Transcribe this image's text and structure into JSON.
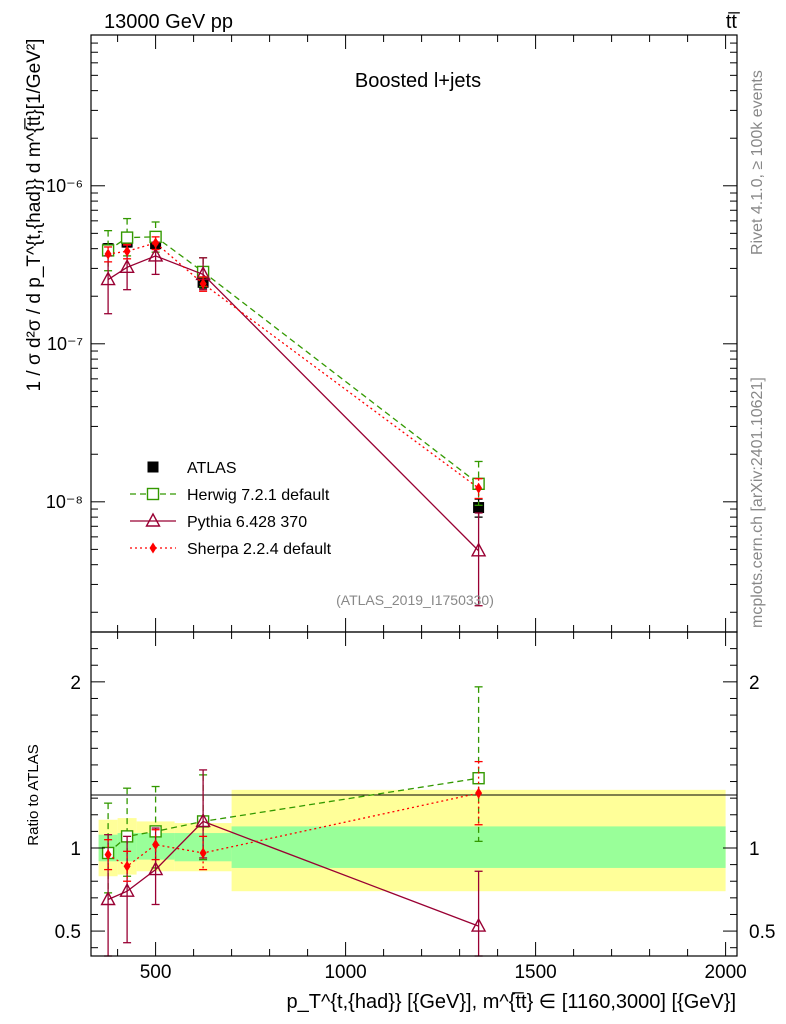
{
  "header": {
    "energy_label": "13000 GeV pp",
    "process_label": "tt̅"
  },
  "side": {
    "rivet_label": "Rivet 4.1.0, ≥ 100k events",
    "source_label": "mcplots.cern.ch [arXiv:2401.10621]"
  },
  "chart_data": [
    {
      "type": "line",
      "panel": "main",
      "title": "Boosted l+jets",
      "watermark": "(ATLAS_2019_I1750330)",
      "ylabel": "1 / σ d²σ / d p_T^{t,{had}} d m^{t̅t}[1/GeV²]",
      "yscale": "log",
      "xlim": [
        330,
        2030
      ],
      "ylim": [
        1.5e-09,
        9e-06
      ],
      "ytick_labels": [
        "10⁻⁶",
        "10⁻⁷",
        "10⁻⁸"
      ],
      "ytick_values": [
        1e-06,
        1e-07,
        1e-08
      ],
      "legend_position": "bottom-left",
      "series": [
        {
          "name": "ATLAS",
          "color": "#000000",
          "marker": "square-filled",
          "line": "none",
          "x": [
            375,
            425,
            500,
            625,
            1350
          ],
          "y": [
            4e-07,
            4.4e-07,
            4.3e-07,
            2.45e-07,
            9.2e-09
          ],
          "y_low": [
            3.7e-07,
            4.1e-07,
            4e-07,
            2.25e-07,
            8e-09
          ],
          "y_high": [
            4.3e-07,
            4.7e-07,
            4.6e-07,
            2.65e-07,
            1.04e-08
          ]
        },
        {
          "name": "Herwig 7.2.1 default",
          "color": "#339900",
          "marker": "square-open",
          "line": "dashed",
          "x": [
            375,
            425,
            500,
            625,
            1350
          ],
          "y": [
            3.9e-07,
            4.7e-07,
            4.75e-07,
            2.85e-07,
            1.3e-08
          ],
          "y_low": [
            2.9e-07,
            3.6e-07,
            3.8e-07,
            2.3e-07,
            9.5e-09
          ],
          "y_high": [
            5.2e-07,
            6.2e-07,
            5.9e-07,
            3.5e-07,
            1.8e-08
          ]
        },
        {
          "name": "Pythia 6.428 370",
          "color": "#990033",
          "marker": "triangle-open",
          "line": "solid",
          "x": [
            375,
            425,
            500,
            625,
            1350
          ],
          "y": [
            2.55e-07,
            3.05e-07,
            3.6e-07,
            2.75e-07,
            4.9e-09
          ],
          "y_low": [
            1.55e-07,
            2.2e-07,
            2.75e-07,
            2.2e-07,
            2.2e-09
          ],
          "y_high": [
            3.6e-07,
            4.2e-07,
            4.4e-07,
            3.5e-07,
            8.5e-09
          ]
        },
        {
          "name": "Sherpa 2.2.4 default",
          "color": "#ff0000",
          "marker": "diamond-filled",
          "line": "dotted",
          "x": [
            375,
            425,
            500,
            625,
            1350
          ],
          "y": [
            3.7e-07,
            3.85e-07,
            4.35e-07,
            2.4e-07,
            1.22e-08
          ],
          "y_low": [
            3.3e-07,
            3.45e-07,
            3.95e-07,
            2.15e-07,
            1.05e-08
          ],
          "y_high": [
            4.1e-07,
            4.25e-07,
            4.75e-07,
            2.65e-07,
            1.4e-08
          ]
        }
      ]
    },
    {
      "type": "line",
      "panel": "ratio",
      "ylabel": "Ratio to ATLAS",
      "xlabel": "p_T^{t,{had}} [{GeV}], m^{t̅t} ∈ [1160,3000] [{GeV}]",
      "xlim": [
        330,
        2030
      ],
      "ylim": [
        0.35,
        2.3
      ],
      "xticks": [
        500,
        1000,
        1500,
        2000
      ],
      "xtick_labels": [
        "500",
        "1000",
        "1500",
        "2000"
      ],
      "yticks": [
        0.5,
        1,
        2
      ],
      "ytick_labels": [
        "0.5",
        "1",
        "2"
      ],
      "bands": {
        "bins": [
          [
            350,
            400
          ],
          [
            400,
            450
          ],
          [
            450,
            550
          ],
          [
            550,
            700
          ],
          [
            700,
            2000
          ]
        ],
        "inner_low": [
          0.92,
          0.92,
          0.93,
          0.92,
          0.88
        ],
        "inner_high": [
          1.08,
          1.09,
          1.09,
          1.09,
          1.13
        ],
        "outer_low": [
          0.83,
          0.84,
          0.86,
          0.86,
          0.74
        ],
        "outer_high": [
          1.17,
          1.18,
          1.16,
          1.15,
          1.35
        ],
        "inner_color": "#99ff99",
        "outer_color": "#ffff99"
      },
      "series": [
        {
          "name": "Herwig 7.2.1 default",
          "color": "#339900",
          "marker": "square-open",
          "line": "dashed",
          "x": [
            375,
            425,
            500,
            625,
            1350
          ],
          "y": [
            0.97,
            1.07,
            1.1,
            1.16,
            1.42
          ],
          "y_low": [
            0.73,
            0.83,
            0.88,
            0.93,
            1.04
          ],
          "y_high": [
            1.27,
            1.36,
            1.37,
            1.44,
            1.97
          ]
        },
        {
          "name": "Pythia 6.428 370",
          "color": "#990033",
          "marker": "triangle-open",
          "line": "solid",
          "x": [
            375,
            425,
            500,
            625,
            1350
          ],
          "y": [
            0.69,
            0.74,
            0.87,
            1.16,
            0.53
          ],
          "y_low": [
            0.35,
            0.43,
            0.66,
            0.94,
            0.35
          ],
          "y_high": [
            1.08,
            1.07,
            1.12,
            1.47,
            0.86
          ]
        },
        {
          "name": "Sherpa 2.2.4 default",
          "color": "#ff0000",
          "marker": "diamond-filled",
          "line": "dotted",
          "x": [
            375,
            425,
            500,
            625,
            1350
          ],
          "y": [
            0.96,
            0.89,
            1.02,
            0.97,
            1.33
          ],
          "y_low": [
            0.87,
            0.8,
            0.93,
            0.87,
            1.14
          ],
          "y_high": [
            1.05,
            0.98,
            1.11,
            1.07,
            1.52
          ]
        }
      ]
    }
  ]
}
